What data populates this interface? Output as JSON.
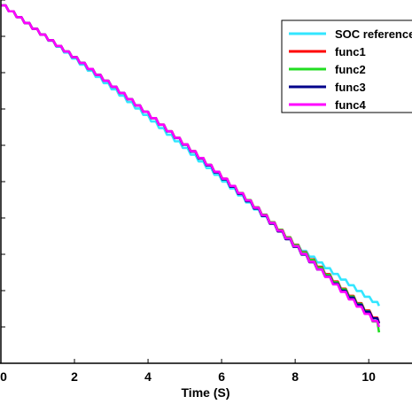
{
  "chart_data": {
    "type": "line",
    "title": "",
    "xlabel": "Time (S)",
    "ylabel": "",
    "xlim": [
      0,
      11.2
    ],
    "ylim": [
      0,
      1
    ],
    "x_ticks": [
      "0",
      "2",
      "4",
      "6",
      "8",
      "10"
    ],
    "x_tick_values": [
      0,
      2,
      4,
      6,
      8,
      10
    ],
    "grid": false,
    "legend_position": "top-right",
    "step_period": 0.215,
    "series": [
      {
        "name": "SOC reference",
        "color": "#33e6ff",
        "x": [
          0,
          1,
          2,
          3,
          4,
          5,
          6,
          7,
          8,
          8.5,
          9,
          9.5,
          10,
          10.28
        ],
        "y": [
          0.985,
          0.91,
          0.834,
          0.755,
          0.673,
          0.588,
          0.502,
          0.413,
          0.322,
          0.285,
          0.248,
          0.212,
          0.175,
          0.158
        ]
      },
      {
        "name": "func1",
        "color": "#ff0000",
        "x": [
          0,
          1,
          2,
          3,
          4,
          5,
          6,
          7,
          8,
          8.5,
          9,
          9.5,
          10,
          10.28
        ],
        "y": [
          0.985,
          0.91,
          0.838,
          0.762,
          0.682,
          0.598,
          0.51,
          0.418,
          0.322,
          0.275,
          0.228,
          0.182,
          0.135,
          0.11
        ]
      },
      {
        "name": "func2",
        "color": "#22dd22",
        "x": [
          0,
          1,
          2,
          3,
          4,
          5,
          6,
          7,
          8,
          8.5,
          9,
          9.5,
          10,
          10.28
        ],
        "y": [
          0.985,
          0.91,
          0.838,
          0.762,
          0.682,
          0.598,
          0.51,
          0.418,
          0.321,
          0.273,
          0.226,
          0.18,
          0.133,
          0.085
        ]
      },
      {
        "name": "func3",
        "color": "#00008b",
        "x": [
          0,
          1,
          2,
          3,
          4,
          5,
          6,
          7,
          8,
          8.5,
          9,
          9.5,
          10,
          10.28
        ],
        "y": [
          0.985,
          0.91,
          0.838,
          0.762,
          0.682,
          0.597,
          0.508,
          0.415,
          0.316,
          0.267,
          0.222,
          0.177,
          0.132,
          0.11
        ]
      },
      {
        "name": "func4",
        "color": "#ff00ff",
        "x": [
          0,
          1,
          2,
          3,
          4,
          5,
          6,
          7,
          8,
          8.5,
          9,
          9.5,
          10,
          10.28
        ],
        "y": [
          0.985,
          0.91,
          0.838,
          0.762,
          0.682,
          0.598,
          0.51,
          0.417,
          0.318,
          0.268,
          0.22,
          0.172,
          0.126,
          0.1
        ]
      }
    ]
  }
}
